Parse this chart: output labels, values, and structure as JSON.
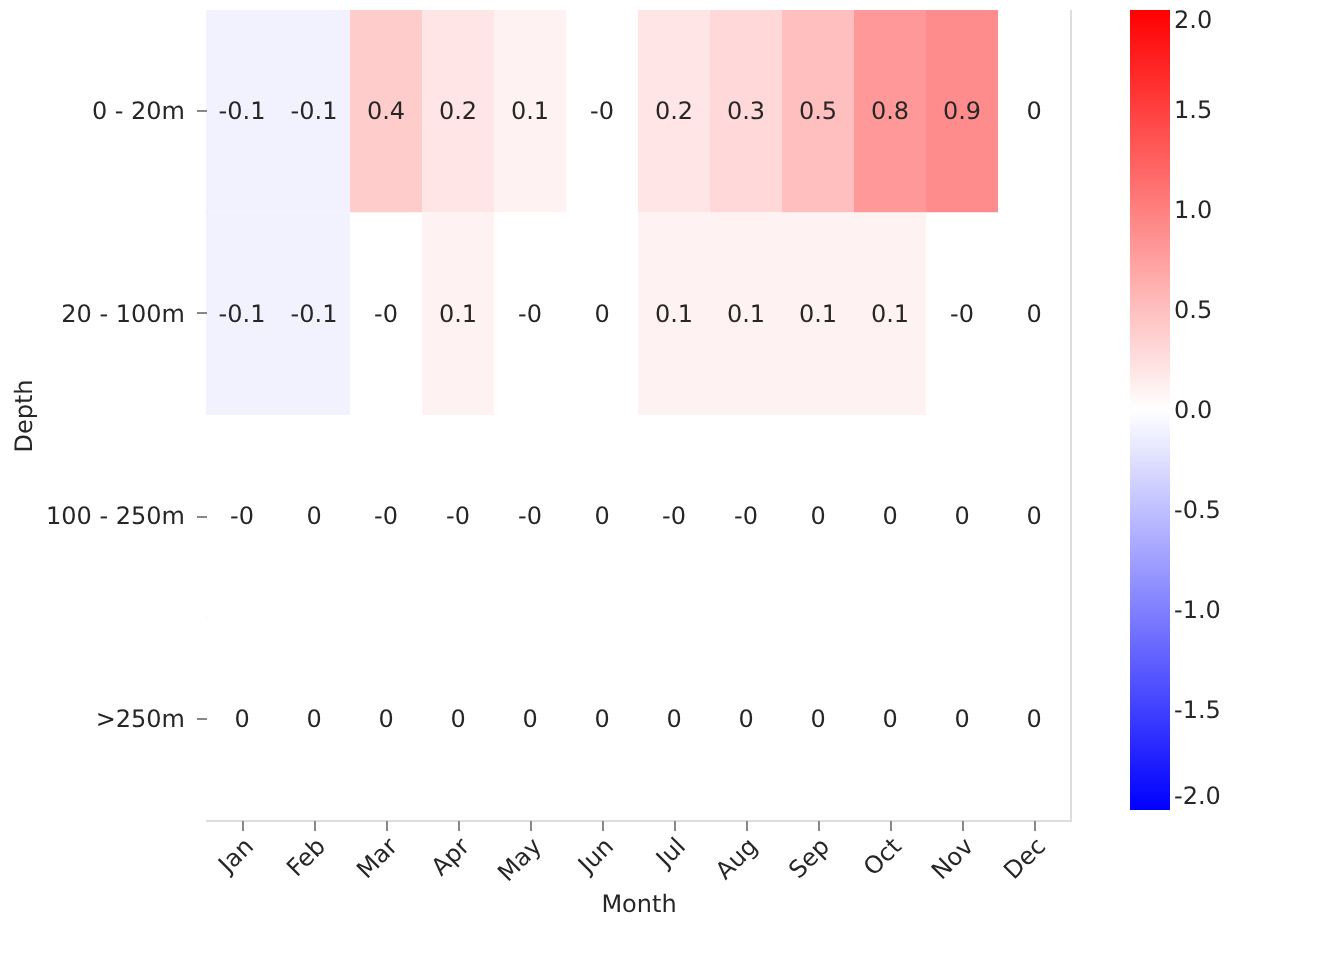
{
  "chart_data": {
    "type": "heatmap",
    "xlabel": "Month",
    "ylabel": "Depth",
    "categories": [
      "Jan",
      "Feb",
      "Mar",
      "Apr",
      "May",
      "Jun",
      "Jul",
      "Aug",
      "Sep",
      "Oct",
      "Nov",
      "Dec"
    ],
    "y_categories": [
      "0 - 20m",
      "20 - 100m",
      "100 - 250m",
      ">250m"
    ],
    "cells": [
      [
        -0.1,
        -0.1,
        0.4,
        0.2,
        0.1,
        0,
        0.2,
        0.3,
        0.5,
        0.8,
        0.9,
        0
      ],
      [
        -0.1,
        -0.1,
        0,
        0.1,
        0,
        0,
        0.1,
        0.1,
        0.1,
        0.1,
        0,
        0
      ],
      [
        0,
        0,
        0,
        0,
        0,
        0,
        0,
        0,
        0,
        0,
        0,
        0
      ],
      [
        0,
        0,
        0,
        0,
        0,
        0,
        0,
        0,
        0,
        0,
        0,
        0
      ]
    ],
    "cell_labels": [
      [
        "-0.1",
        "-0.1",
        "0.4",
        "0.2",
        "0.1",
        "-0",
        "0.2",
        "0.3",
        "0.5",
        "0.8",
        "0.9",
        "0"
      ],
      [
        "-0.1",
        "-0.1",
        "-0",
        "0.1",
        "-0",
        "0",
        "0.1",
        "0.1",
        "0.1",
        "0.1",
        "-0",
        "0"
      ],
      [
        "-0",
        "0",
        "-0",
        "-0",
        "-0",
        "0",
        "-0",
        "-0",
        "0",
        "0",
        "0",
        "0"
      ],
      [
        "0",
        "0",
        "0",
        "0",
        "0",
        "0",
        "0",
        "0",
        "0",
        "0",
        "0",
        "0"
      ]
    ],
    "clim": [
      -2,
      2
    ],
    "cticks": [
      {
        "value": -2,
        "label": "-2.0"
      },
      {
        "value": -1.5,
        "label": "-1.5"
      },
      {
        "value": -1,
        "label": "-1.0"
      },
      {
        "value": -0.5,
        "label": "-0.5"
      },
      {
        "value": 0,
        "label": "0.0"
      },
      {
        "value": 0.5,
        "label": "0.5"
      },
      {
        "value": 1,
        "label": "1.0"
      },
      {
        "value": 1.5,
        "label": "1.5"
      },
      {
        "value": 2,
        "label": "2.0"
      }
    ],
    "colors": [
      "#0000ff",
      "#ffffff",
      "#ff0000"
    ]
  }
}
